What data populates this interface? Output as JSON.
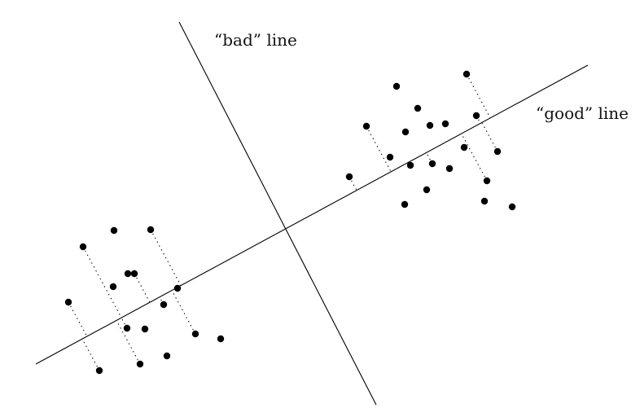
{
  "labels": {
    "bad_line": "“bad” line",
    "good_line": "“good” line"
  },
  "style": {
    "ink": "#000000",
    "background": "#ffffff"
  }
}
